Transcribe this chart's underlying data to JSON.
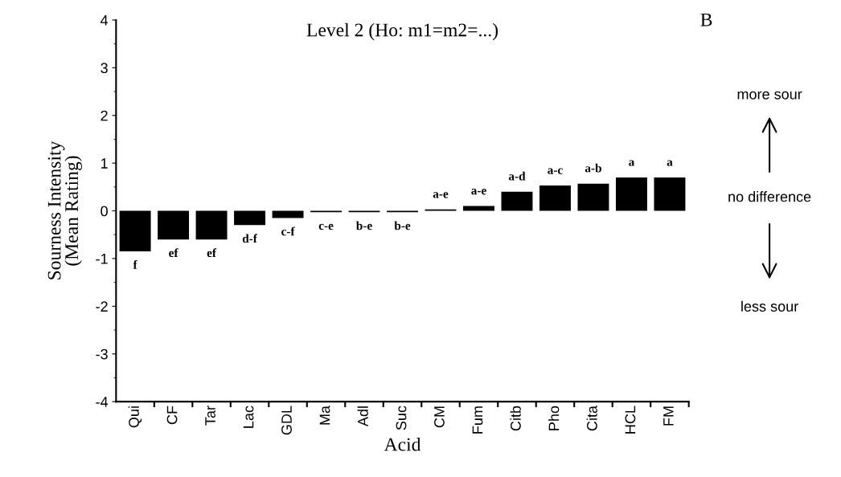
{
  "chart_data": {
    "type": "bar",
    "title": "Level 2 (Ho: m1=m2=...)",
    "xlabel": "Acid",
    "ylabel": "Sourness Intensity\n(Mean Rating)",
    "categories": [
      "Qui",
      "CF",
      "Tar",
      "Lac",
      "GDL",
      "Ma",
      "Adl",
      "Suc",
      "CM",
      "Fum",
      "Citb",
      "Pho",
      "Cita",
      "HCL",
      "FM"
    ],
    "values": [
      -0.85,
      -0.6,
      -0.6,
      -0.3,
      -0.15,
      -0.03,
      -0.03,
      -0.03,
      0.03,
      0.1,
      0.4,
      0.53,
      0.57,
      0.7,
      0.7
    ],
    "value_labels": [
      "f",
      "ef",
      "ef",
      "d-f",
      "c-f",
      "c-e",
      "b-e",
      "b-e",
      "a-e",
      "a-e",
      "a-d",
      "a-c",
      "a-b",
      "a",
      "a"
    ],
    "color": "#000000",
    "ylim": [
      -4,
      4
    ],
    "yticks": [
      -4,
      -3,
      -2,
      -1,
      0,
      1,
      2,
      3,
      4
    ],
    "annotations": [
      "B",
      "more sour",
      "no difference",
      "less sour"
    ]
  }
}
